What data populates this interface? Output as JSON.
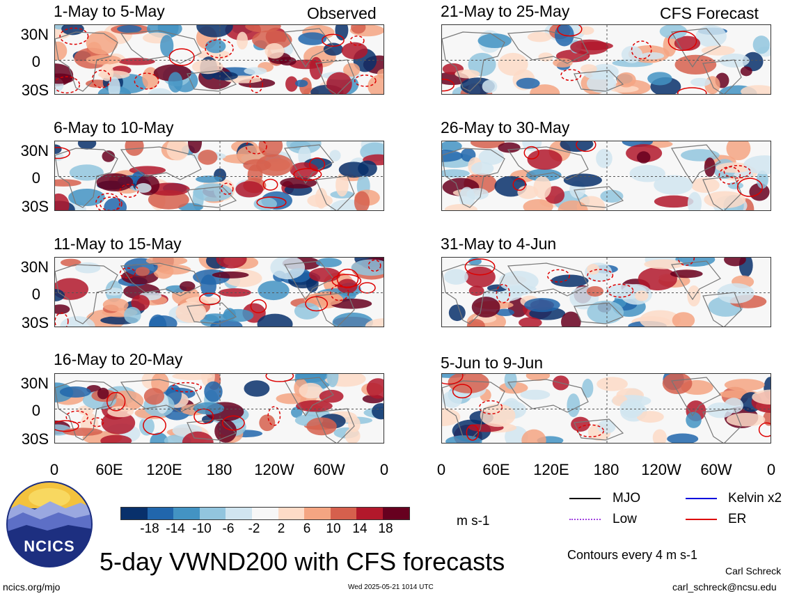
{
  "chart_data": [
    {
      "type": "heatmap",
      "title": "1-May to 5-May",
      "label": "Observed",
      "col": 0,
      "row": 0
    },
    {
      "type": "heatmap",
      "title": "6-May to 10-May",
      "label": "",
      "col": 0,
      "row": 1
    },
    {
      "type": "heatmap",
      "title": "11-May to 15-May",
      "label": "",
      "col": 0,
      "row": 2
    },
    {
      "type": "heatmap",
      "title": "16-May to 20-May",
      "label": "",
      "col": 0,
      "row": 3
    },
    {
      "type": "heatmap",
      "title": "21-May to 25-May",
      "label": "CFS Forecast",
      "col": 1,
      "row": 0
    },
    {
      "type": "heatmap",
      "title": "26-May to 30-May",
      "label": "",
      "col": 1,
      "row": 1
    },
    {
      "type": "heatmap",
      "title": "31-May to 4-Jun",
      "label": "",
      "col": 1,
      "row": 2
    },
    {
      "type": "heatmap",
      "title": "5-Jun to 9-Jun",
      "label": "",
      "col": 1,
      "row": 3
    }
  ],
  "axes": {
    "y_ticks": [
      "30N",
      "0",
      "30S"
    ],
    "x_ticks": [
      "0",
      "60E",
      "120E",
      "180",
      "120W",
      "60W",
      "0"
    ],
    "lon_range": [
      0,
      360
    ],
    "lat_range": [
      -40,
      40
    ]
  },
  "colorbar": {
    "colors": [
      "#08306b",
      "#2166ac",
      "#4393c3",
      "#92c5de",
      "#d1e5f0",
      "#f7f7f7",
      "#fddbc7",
      "#f4a582",
      "#d6604d",
      "#b2182b",
      "#67001f"
    ],
    "labels": [
      "-18",
      "-14",
      "-10",
      "-6",
      "-2",
      "2",
      "6",
      "10",
      "14",
      "18"
    ],
    "units": "m s-1"
  },
  "legend": [
    {
      "label": "MJO",
      "color": "#000000",
      "style": "solid"
    },
    {
      "label": "Kelvin x2",
      "color": "#0000dd",
      "style": "solid"
    },
    {
      "label": "Low",
      "color": "#a040e0",
      "style": "dotted"
    },
    {
      "label": "ER",
      "color": "#dd0000",
      "style": "solid"
    }
  ],
  "contour_note": "Contours every 4 m s-1",
  "main_title": "5-day VWND200 with CFS forecasts",
  "logo_text": "NCICS",
  "footer": {
    "left": "ncics.org/mjo",
    "center": "Wed 2025-05-21 1014 UTC",
    "author": "Carl Schreck",
    "email": "carl_schreck@ncsu.edu"
  }
}
